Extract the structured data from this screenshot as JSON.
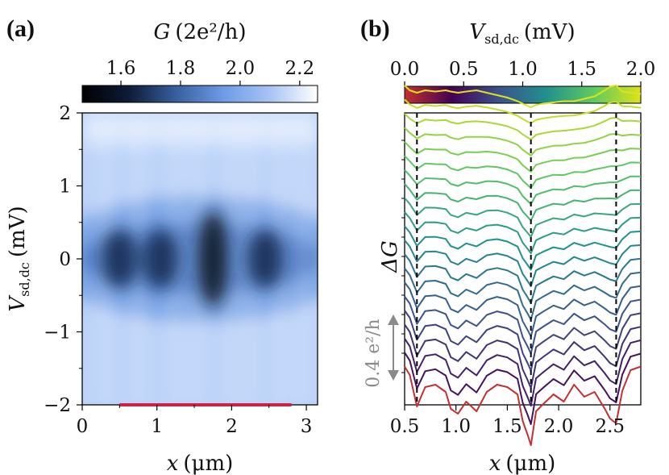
{
  "panels": {
    "a": "(a)",
    "b": "(b)"
  },
  "chart_data": [
    {
      "type": "heatmap",
      "colorbar": {
        "label": "G (2e²/h)",
        "label_var": "G",
        "label_unit": "(2e²/h)",
        "ticks": [
          "1.6",
          "1.8",
          "2.0",
          "2.2"
        ],
        "tick_values": [
          1.6,
          1.8,
          2.0,
          2.2
        ],
        "range": [
          1.47,
          2.26
        ],
        "colors": [
          "#000000",
          "#0e1c38",
          "#37609f",
          "#6d9be6",
          "#a9c4f3",
          "#ffffff"
        ]
      },
      "xlabel_var": "x",
      "xlabel_unit": "(μm)",
      "ylabel_var": "V",
      "ylabel_sub": "sd,dc",
      "ylabel_unit": "(mV)",
      "x_ticks": [
        "0",
        "1",
        "2",
        "3"
      ],
      "x_tick_values": [
        0,
        1,
        2,
        3
      ],
      "y_ticks": [
        "2",
        "1",
        "0",
        "−1",
        "−2"
      ],
      "y_tick_values": [
        2,
        1,
        0,
        -1,
        -2
      ],
      "xlim": [
        0,
        3.15
      ],
      "ylim": [
        -2,
        2
      ],
      "dark_regions_x": [
        0.5,
        1.05,
        1.75,
        2.45
      ],
      "dark_region_v": 0,
      "marker_bar": {
        "x_start": 0.5,
        "x_end": 2.8,
        "y": -2,
        "color": "#cc2244"
      }
    },
    {
      "type": "line",
      "colorbar": {
        "label_var": "V",
        "label_sub": "sd,dc",
        "label_unit": "(mV)",
        "ticks": [
          "0.0",
          "0.5",
          "1.0",
          "1.5",
          "2.0"
        ],
        "tick_values": [
          0.0,
          0.5,
          1.0,
          1.5,
          2.0
        ],
        "range": [
          0.0,
          2.0
        ],
        "colors": [
          "#c23030",
          "#440154",
          "#3b528b",
          "#21918c",
          "#5ec962",
          "#dde318"
        ]
      },
      "xlabel_var": "x",
      "xlabel_unit": "(μm)",
      "ylabel": "ΔG",
      "x_ticks": [
        "0.5",
        "1.0",
        "1.5",
        "2.0",
        "2.5"
      ],
      "x_tick_values": [
        0.5,
        1.0,
        1.5,
        2.0,
        2.5
      ],
      "xlim": [
        0.5,
        2.8
      ],
      "vlines_x": [
        0.62,
        1.73,
        2.56
      ],
      "scale_bar_label": "0.4 e²/h",
      "series_vsd": [
        0.0,
        0.1,
        0.2,
        0.3,
        0.4,
        0.5,
        0.6,
        0.7,
        0.8,
        0.9,
        1.0,
        1.1,
        1.2,
        1.3,
        1.4,
        1.5,
        1.6,
        1.7,
        1.8,
        1.9,
        2.0
      ],
      "profile_x": [
        0.5,
        0.55,
        0.62,
        0.7,
        0.8,
        0.9,
        0.95,
        1.02,
        1.1,
        1.2,
        1.3,
        1.4,
        1.5,
        1.6,
        1.65,
        1.7,
        1.73,
        1.78,
        1.85,
        1.95,
        2.05,
        2.15,
        2.25,
        2.35,
        2.45,
        2.5,
        2.56,
        2.62,
        2.7,
        2.8
      ],
      "profile_low_v": [
        0.05,
        -0.02,
        -0.28,
        -0.12,
        -0.1,
        -0.16,
        -0.3,
        -0.34,
        -0.24,
        -0.32,
        -0.16,
        -0.1,
        -0.12,
        -0.18,
        -0.4,
        -0.52,
        -0.6,
        -0.32,
        -0.26,
        -0.18,
        -0.24,
        -0.1,
        -0.2,
        -0.16,
        -0.3,
        -0.38,
        -0.42,
        -0.15,
        0.02,
        0.05
      ],
      "profile_high_v": [
        0.04,
        0.0,
        -0.02,
        0.0,
        -0.01,
        0.0,
        -0.01,
        -0.02,
        -0.01,
        0.0,
        -0.02,
        -0.04,
        -0.06,
        -0.09,
        -0.11,
        -0.13,
        -0.14,
        -0.12,
        -0.11,
        -0.1,
        -0.09,
        -0.09,
        -0.07,
        -0.05,
        0.0,
        0.03,
        0.04,
        -0.01,
        -0.02,
        -0.03
      ],
      "offset_per_step": 0.05
    }
  ]
}
